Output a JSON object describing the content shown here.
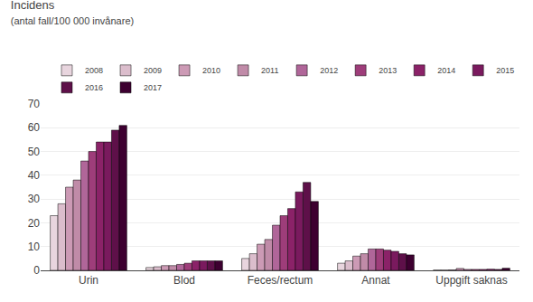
{
  "chart_data": {
    "type": "bar",
    "title": "Incidens",
    "subtitle": "(antal fall/100 000 invånare)",
    "categories": [
      "Urin",
      "Blod",
      "Feces/rectum",
      "Annat",
      "Uppgift saknas"
    ],
    "series": [
      {
        "name": "2008",
        "color": "#e8d5de",
        "values": [
          23,
          1.2,
          5.0,
          3.0,
          0.1
        ]
      },
      {
        "name": "2009",
        "color": "#dbbdcc",
        "values": [
          28,
          1.5,
          7.0,
          4.0,
          0.1
        ]
      },
      {
        "name": "2010",
        "color": "#cc9ab5",
        "values": [
          35,
          2.0,
          11.0,
          6.0,
          0.2
        ]
      },
      {
        "name": "2011",
        "color": "#c08ba8",
        "values": [
          38,
          2.0,
          13.0,
          7.0,
          0.8
        ]
      },
      {
        "name": "2012",
        "color": "#b06699",
        "values": [
          46,
          2.5,
          19.0,
          9.0,
          0.4
        ]
      },
      {
        "name": "2013",
        "color": "#9e3d7a",
        "values": [
          50,
          3.0,
          23.0,
          9.0,
          0.4
        ]
      },
      {
        "name": "2014",
        "color": "#8b2268",
        "values": [
          54,
          4.0,
          26.0,
          8.5,
          0.4
        ]
      },
      {
        "name": "2015",
        "color": "#7a1a5e",
        "values": [
          54,
          4.0,
          33.0,
          8.0,
          0.5
        ]
      },
      {
        "name": "2016",
        "color": "#5e1049",
        "values": [
          59,
          4.0,
          37.0,
          7.0,
          0.4
        ]
      },
      {
        "name": "2017",
        "color": "#3d0030",
        "values": [
          61,
          4.0,
          29.0,
          6.5,
          0.9
        ]
      }
    ],
    "ylim": [
      0,
      70
    ],
    "yticks": [
      0,
      10,
      20,
      30,
      40,
      50,
      60,
      70
    ],
    "grid": true,
    "legend": "upper right"
  }
}
